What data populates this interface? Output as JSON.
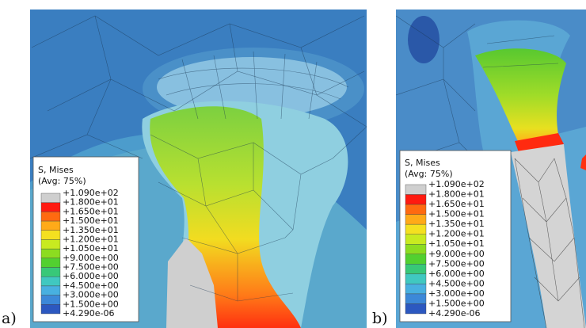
{
  "panels": [
    {
      "label": "a)",
      "legend": {
        "title": "S, Mises",
        "subtitle": "(Avg: 75%)",
        "labels": [
          "+1.090e+02",
          "+1.800e+01",
          "+1.650e+01",
          "+1.500e+01",
          "+1.350e+01",
          "+1.200e+01",
          "+1.050e+01",
          "+9.000e+00",
          "+7.500e+00",
          "+6.000e+00",
          "+4.500e+00",
          "+3.000e+00",
          "+1.500e+00",
          "+4.290e-06"
        ],
        "colors": [
          "#cfcfcf",
          "#ff1a10",
          "#ff6a10",
          "#ffaa18",
          "#f4e020",
          "#c8ea20",
          "#8cdc20",
          "#52d030",
          "#38c878",
          "#40c8c0",
          "#48b0e0",
          "#3c88d8",
          "#2c58c0"
        ]
      }
    },
    {
      "label": "b)",
      "legend": {
        "title": "S, Mises",
        "subtitle": "(Avg: 75%)",
        "labels": [
          "+1.090e+02",
          "+1.800e+01",
          "+1.650e+01",
          "+1.500e+01",
          "+1.350e+01",
          "+1.200e+01",
          "+1.050e+01",
          "+9.000e+00",
          "+7.500e+00",
          "+6.000e+00",
          "+4.500e+00",
          "+3.000e+00",
          "+1.500e+00",
          "+4.290e-06"
        ],
        "colors": [
          "#cfcfcf",
          "#ff1a10",
          "#ff6a10",
          "#ffaa18",
          "#f4e020",
          "#c8ea20",
          "#8cdc20",
          "#52d030",
          "#38c878",
          "#40c8c0",
          "#48b0e0",
          "#3c88d8",
          "#2c58c0"
        ]
      }
    }
  ]
}
